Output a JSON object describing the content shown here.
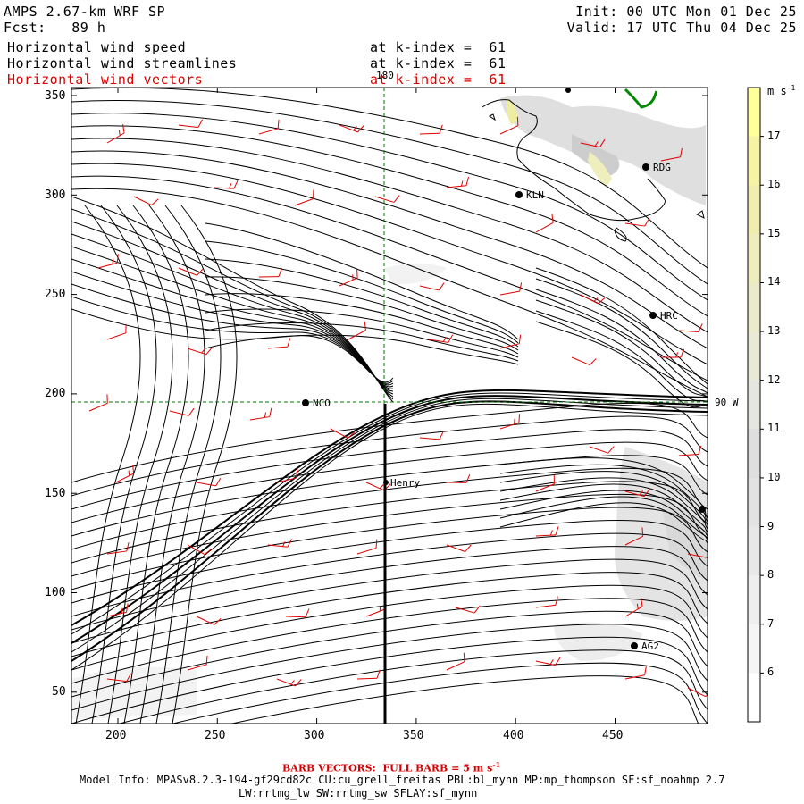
{
  "header": {
    "title_line1": "AMPS 2.67-km WRF SP",
    "title_line2": "Fcst:   89 h",
    "init": "Init: 00 UTC Mon 01 Dec 25",
    "valid": "Valid: 17 UTC Thu 04 Dec 25",
    "fields": [
      {
        "name": "Horizontal wind speed",
        "level": "at k-index =  61"
      },
      {
        "name": "Horizontal wind streamlines",
        "level": "at k-index =  61"
      },
      {
        "name": "Horizontal wind vectors",
        "level": "at k-index =  61"
      }
    ]
  },
  "map": {
    "x_ticks": [
      "200",
      "250",
      "300",
      "350",
      "400",
      "450"
    ],
    "y_ticks": [
      "350",
      "300",
      "250",
      "200",
      "150",
      "100",
      "50"
    ],
    "lon_label_180": "180",
    "lon_label_90w": "90 W",
    "cross_section_point": "Henry",
    "stations": [
      {
        "name": "RDG"
      },
      {
        "name": "KLN"
      },
      {
        "name": "HRC"
      },
      {
        "name": "NCO"
      },
      {
        "name": "Henry"
      },
      {
        "name": "AG2"
      }
    ]
  },
  "colorbar": {
    "units": "m s",
    "units_exp": "-1",
    "labels": [
      "17",
      "16",
      "15",
      "14",
      "13",
      "12",
      "11",
      "10",
      "9",
      "8",
      "7",
      "6"
    ],
    "colors": [
      "#ffff9c",
      "#f6f3a4",
      "#f0eeaf",
      "#eeedbd",
      "#ebebcb",
      "#e9e9d6",
      "#e6e6e0",
      "#dedede",
      "#e3e3e3",
      "#e8e8e8",
      "#efefef",
      "#f5f5f5",
      "#ffffff"
    ]
  },
  "footer": {
    "barb_note": "BARB VECTORS:  FULL BARB = 5 m s",
    "barb_exp": "-1",
    "model_info_1": "Model Info: MPASv8.2.3-194-gf29cd82c CU:cu_grell_freitas PBL:bl_mynn MP:mp_thompson SF:sf_noahmp 2.7",
    "model_info_2": "LW:rrtmg_lw SW:rrtmg_sw SFLAY:sf_mynn"
  }
}
